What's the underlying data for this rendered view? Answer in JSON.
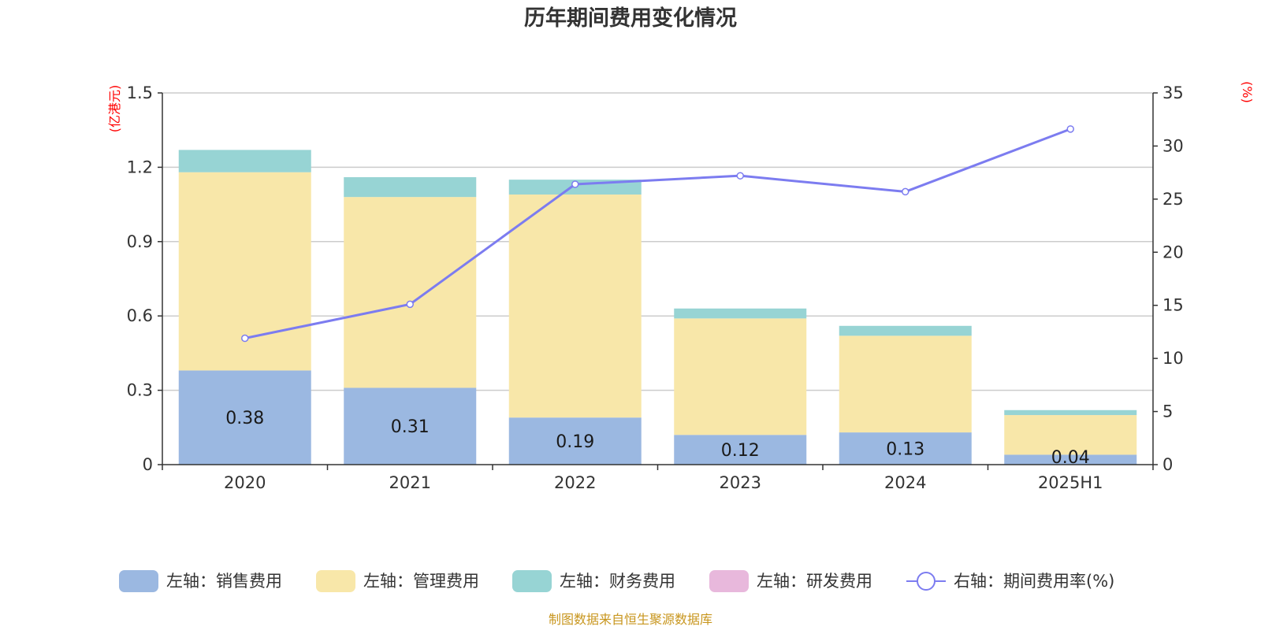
{
  "chart_data": {
    "type": "bar",
    "title": "历年期间费用变化情况",
    "categories": [
      "2020",
      "2021",
      "2022",
      "2023",
      "2024",
      "2025H1"
    ],
    "left_axis": {
      "unit_label": "(亿港元)",
      "ylim": [
        0,
        1.5
      ],
      "ticks": [
        "0",
        "0.3",
        "0.6",
        "0.9",
        "1.2",
        "1.5"
      ]
    },
    "right_axis": {
      "unit_label": "(%)",
      "ylim": [
        0,
        35
      ],
      "ticks": [
        "0",
        "5",
        "10",
        "15",
        "20",
        "25",
        "30",
        "35"
      ]
    },
    "series": [
      {
        "name": "左轴：销售费用",
        "kind": "bar",
        "color": "#9bb8e1",
        "values": [
          0.38,
          0.31,
          0.19,
          0.12,
          0.13,
          0.04
        ],
        "labels": [
          "0.38",
          "0.31",
          "0.19",
          "0.12",
          "0.13",
          "0.04"
        ]
      },
      {
        "name": "左轴：管理费用",
        "kind": "bar",
        "color": "#f8e7a9",
        "values": [
          0.8,
          0.77,
          0.9,
          0.47,
          0.39,
          0.16
        ]
      },
      {
        "name": "左轴：财务费用",
        "kind": "bar",
        "color": "#97d4d4",
        "values": [
          0.09,
          0.08,
          0.06,
          0.04,
          0.04,
          0.02
        ]
      },
      {
        "name": "左轴：研发费用",
        "kind": "bar",
        "color": "#e8b8dc",
        "values": [
          0,
          0,
          0,
          0,
          0,
          0
        ]
      },
      {
        "name": "右轴：期间费用率(%)",
        "kind": "line",
        "axis": "right",
        "color": "#7c7cf0",
        "values": [
          11.9,
          15.1,
          26.4,
          27.2,
          25.7,
          31.6
        ]
      }
    ],
    "legend_position": "bottom",
    "grid": true
  },
  "source": "制图数据来自恒生聚源数据库"
}
